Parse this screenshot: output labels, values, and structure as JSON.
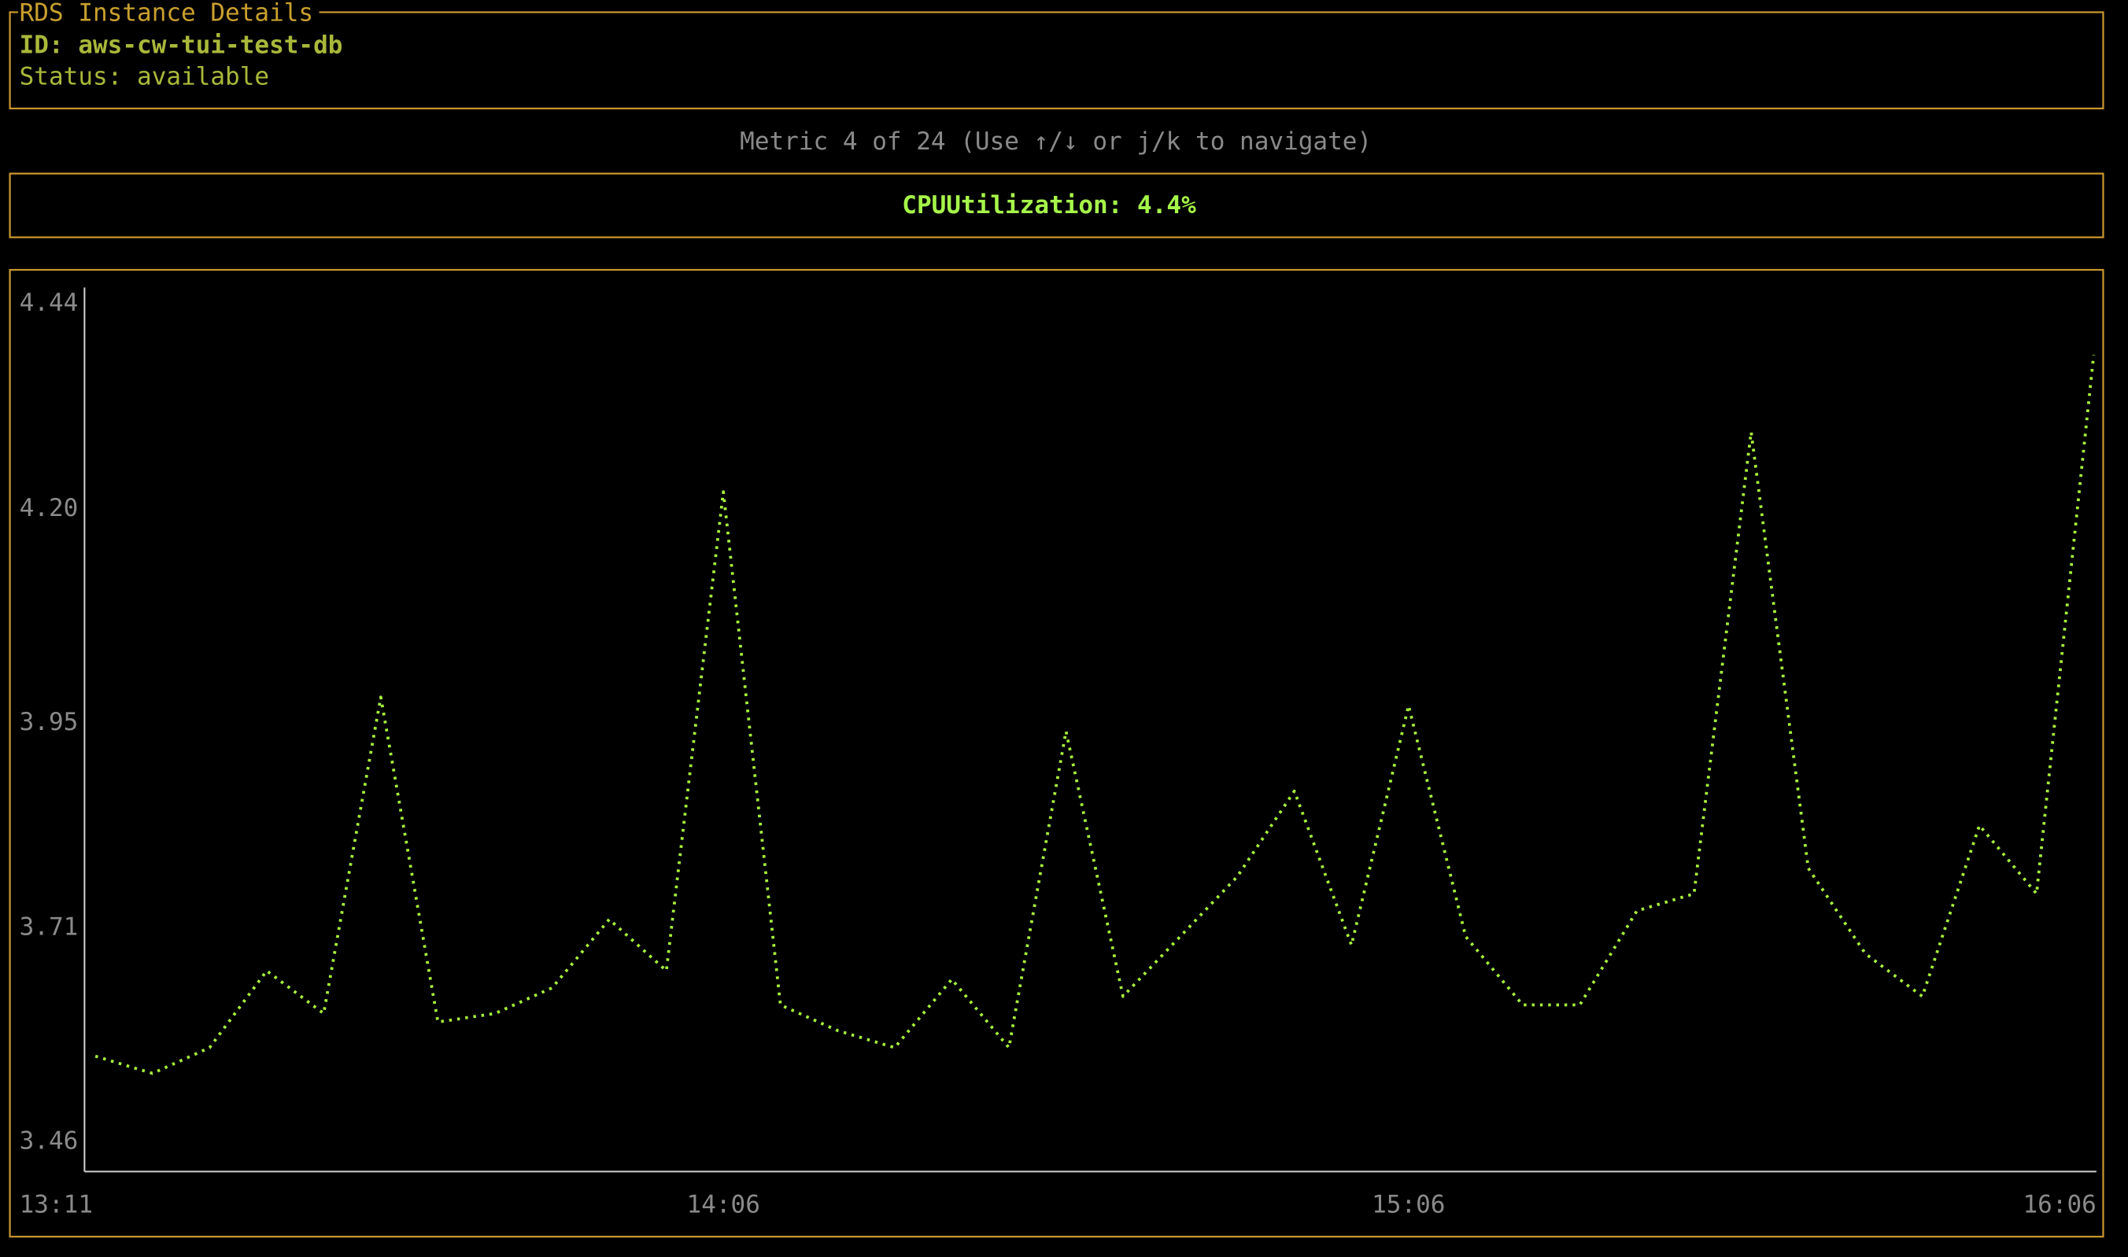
{
  "details": {
    "title": "RDS Instance Details",
    "id_line": "ID: aws-cw-tui-test-db",
    "status_line": "Status: available"
  },
  "navigation": "Metric 4 of 24 (Use ↑/↓ or j/k to navigate)",
  "metric": "CPUUtilization: 4.4%",
  "chart_data": {
    "type": "line",
    "x": [
      "13:11",
      "13:16",
      "13:21",
      "13:26",
      "13:31",
      "13:36",
      "13:41",
      "13:46",
      "13:51",
      "13:56",
      "14:01",
      "14:06",
      "14:11",
      "14:16",
      "14:21",
      "14:26",
      "14:31",
      "14:36",
      "14:41",
      "14:46",
      "14:51",
      "14:56",
      "15:01",
      "15:06",
      "15:11",
      "15:16",
      "15:21",
      "15:26",
      "15:31",
      "15:36",
      "15:41",
      "15:46",
      "15:51",
      "15:56",
      "16:01",
      "16:06"
    ],
    "series": [
      {
        "color": "#a6f03c",
        "values": [
          3.56,
          3.54,
          3.57,
          3.66,
          3.61,
          3.98,
          3.6,
          3.61,
          3.64,
          3.72,
          3.66,
          4.22,
          3.62,
          3.59,
          3.57,
          3.65,
          3.57,
          3.94,
          3.63,
          3.7,
          3.77,
          3.87,
          3.69,
          3.97,
          3.7,
          3.62,
          3.62,
          3.73,
          3.75,
          4.29,
          3.78,
          3.68,
          3.63,
          3.83,
          3.75,
          4.38
        ]
      }
    ],
    "ylim": [
      3.46,
      4.44
    ],
    "yticks": [
      4.44,
      {
        "value": 4.2,
        "label": "4.20"
      },
      3.95,
      3.71,
      3.46
    ],
    "xticks": [
      "13:11",
      "14:06",
      "15:06",
      "16:06"
    ]
  }
}
